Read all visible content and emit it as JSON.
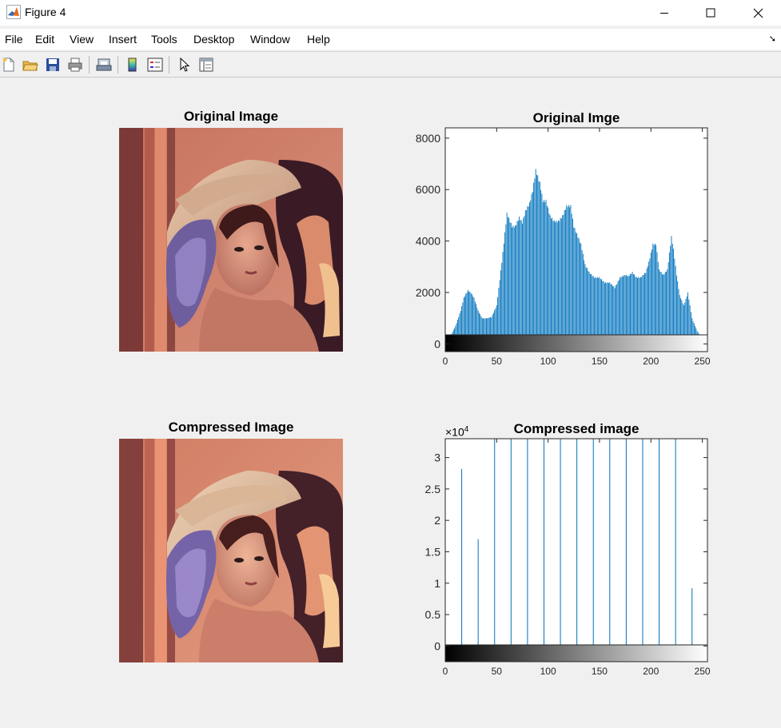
{
  "window": {
    "title": "Figure 4",
    "controls": {
      "minimize": "—",
      "maximize": "☐",
      "close": "✕"
    }
  },
  "menu": [
    "File",
    "Edit",
    "View",
    "Insert",
    "Tools",
    "Desktop",
    "Window",
    "Help"
  ],
  "toolbar": {
    "buttons": [
      "new-figure-icon",
      "open-file-icon",
      "save-icon",
      "print-icon",
      "link-plot-icon",
      "insert-colorbar-icon",
      "insert-legend-icon",
      "edit-plot-pointer-icon",
      "property-inspector-icon"
    ]
  },
  "subplots": {
    "top_left": {
      "title": "Original Image",
      "image": "lena-photo"
    },
    "top_right": {
      "title": "Original Imge"
    },
    "bottom_left": {
      "title": "Compressed Image",
      "image": "lena-photo-compressed"
    },
    "bottom_right": {
      "title": "Compressed image",
      "exponent_base": "×10",
      "exponent_power": "4"
    }
  },
  "colors": {
    "bar": "#0072bd",
    "axes_background": "#ffffff",
    "figure_background": "#f0f0f0"
  },
  "chart_data": [
    {
      "type": "bar",
      "title": "Original Imge",
      "xlabel": "",
      "ylabel": "",
      "xlim": [
        0,
        255
      ],
      "ylim": [
        -300,
        8400
      ],
      "yticks": [
        0,
        2000,
        4000,
        6000,
        8000
      ],
      "ytick_labels": [
        "0",
        "2000",
        "4000",
        "6000",
        "8000"
      ],
      "xticks": [
        0,
        50,
        100,
        150,
        200,
        250
      ],
      "xtick_labels": [
        "0",
        "50",
        "100",
        "150",
        "200",
        "250"
      ],
      "colorbar": "grayscale",
      "grid": false,
      "envelope_x": [
        0,
        5,
        10,
        15,
        18,
        22,
        25,
        28,
        32,
        36,
        40,
        45,
        50,
        55,
        60,
        65,
        68,
        72,
        75,
        78,
        82,
        85,
        88,
        92,
        95,
        98,
        102,
        106,
        110,
        114,
        118,
        122,
        125,
        128,
        132,
        136,
        140,
        145,
        150,
        155,
        160,
        165,
        170,
        175,
        178,
        182,
        186,
        190,
        195,
        198,
        202,
        205,
        208,
        212,
        216,
        220,
        222,
        225,
        228,
        232,
        236,
        240,
        245,
        250,
        255
      ],
      "envelope_y": [
        100,
        300,
        700,
        1300,
        1800,
        2100,
        2000,
        1800,
        1300,
        1000,
        1000,
        1050,
        1500,
        3200,
        5100,
        4600,
        4600,
        4950,
        4750,
        5200,
        5500,
        6000,
        6800,
        6300,
        5600,
        5600,
        5000,
        4800,
        4800,
        5000,
        5400,
        5400,
        4600,
        4300,
        3900,
        3100,
        2800,
        2600,
        2600,
        2400,
        2400,
        2200,
        2600,
        2700,
        2650,
        2800,
        2600,
        2600,
        2800,
        3200,
        3900,
        3900,
        2900,
        2700,
        2900,
        4200,
        3700,
        2700,
        1900,
        1500,
        2000,
        1000,
        500,
        200,
        50
      ]
    },
    {
      "type": "bar",
      "title": "Compressed image",
      "xlabel": "",
      "ylabel": "",
      "xlim": [
        0,
        255
      ],
      "ylim": [
        -2500,
        33000
      ],
      "y_exponent": 4,
      "yticks": [
        0,
        5000,
        10000,
        15000,
        20000,
        25000,
        30000
      ],
      "ytick_labels": [
        "0",
        "0.5",
        "1",
        "1.5",
        "2",
        "2.5",
        "3"
      ],
      "xticks": [
        0,
        50,
        100,
        150,
        200,
        250
      ],
      "xtick_labels": [
        "0",
        "50",
        "100",
        "150",
        "200",
        "250"
      ],
      "colorbar": "grayscale",
      "grid": false,
      "x": [
        0,
        16,
        32,
        48,
        64,
        80,
        96,
        112,
        128,
        144,
        160,
        176,
        192,
        208,
        224,
        240
      ],
      "values": [
        1800,
        28200,
        17000,
        33500,
        33500,
        33500,
        33500,
        33500,
        33500,
        33500,
        33500,
        33500,
        33500,
        33500,
        33500,
        9200
      ]
    }
  ]
}
